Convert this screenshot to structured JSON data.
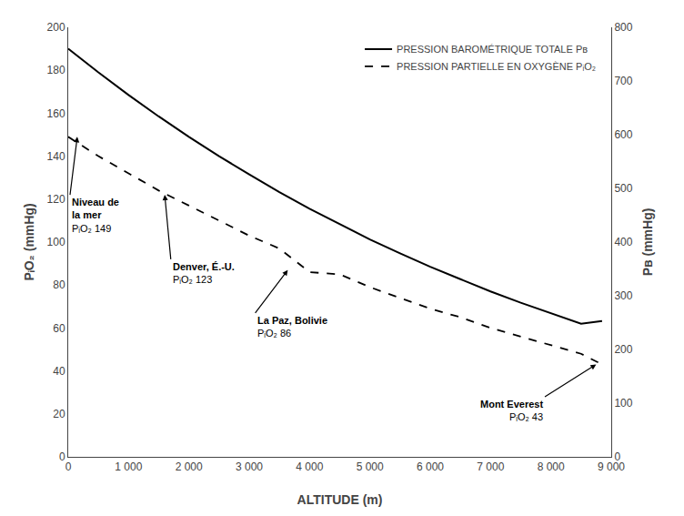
{
  "chart_data": {
    "type": "line",
    "xlabel": "ALTITUDE (m)",
    "ylabel": "PᵢO₂ (mmHg)",
    "y2label": "Pʙ (mmHg)",
    "x": [
      0,
      500,
      1000,
      1500,
      2000,
      2500,
      3000,
      3500,
      4000,
      4500,
      5000,
      5500,
      6000,
      6500,
      7000,
      7500,
      8000,
      8500,
      8848
    ],
    "series": [
      {
        "name": "PRESSION BAROMÉTRIQUE TOTALE Pʙ",
        "color": "#000000",
        "line_style": "solid",
        "axis": "y2",
        "values": [
          760,
          716,
          674,
          634,
          596,
          560,
          526,
          493,
          462,
          433,
          405,
          379,
          354,
          331,
          308,
          287,
          267,
          248,
          253
        ]
      },
      {
        "name": "PRESSION PARTIELLE EN OXYGÈNE PᵢO₂",
        "color": "#000000",
        "line_style": "dash",
        "values": [
          149,
          140,
          132,
          124,
          117,
          110,
          103,
          97,
          86,
          85,
          79,
          74,
          69,
          65,
          60,
          56,
          52,
          48,
          43
        ]
      }
    ],
    "xlim": [
      0,
      9000
    ],
    "xticks": [
      0,
      {
        "value": 1000,
        "label": "1 000"
      },
      {
        "value": 2000,
        "label": "2 000"
      },
      {
        "value": 3000,
        "label": "3 000"
      },
      {
        "value": 4000,
        "label": "4 000"
      },
      {
        "value": 5000,
        "label": "5 000"
      },
      {
        "value": 6000,
        "label": "6 000"
      },
      {
        "value": 7000,
        "label": "7 000"
      },
      {
        "value": 8000,
        "label": "8 000"
      },
      {
        "value": 9000,
        "label": "9 000"
      }
    ],
    "ylim": [
      0,
      200
    ],
    "yticks": [
      0,
      20,
      40,
      60,
      80,
      100,
      120,
      140,
      160,
      180,
      200
    ],
    "y2lim": [
      0,
      800
    ],
    "y2ticks": [
      0,
      100,
      200,
      300,
      400,
      500,
      600,
      700,
      800
    ],
    "grid": false,
    "legend": "upper right",
    "annotations": [
      {
        "label": "Niveau de\nla mer",
        "sublabel": "PᵢO₂ 149",
        "x": 150,
        "y": 149,
        "text_x": 30,
        "text_y": 122
      },
      {
        "label": "Denver, É.-U.",
        "sublabel": "PᵢO₂ 123",
        "x": 1600,
        "y": 122,
        "text_x": 1700,
        "text_y": 92
      },
      {
        "label": "La Paz, Bolivie",
        "sublabel": "PᵢO₂ 86",
        "x": 3640,
        "y": 87,
        "text_x": 3100,
        "text_y": 67
      },
      {
        "label": "Mont Everest",
        "sublabel": "PᵢO₂ 43",
        "x": 8750,
        "y": 43,
        "text_x": 7900,
        "text_y": 28
      }
    ]
  }
}
